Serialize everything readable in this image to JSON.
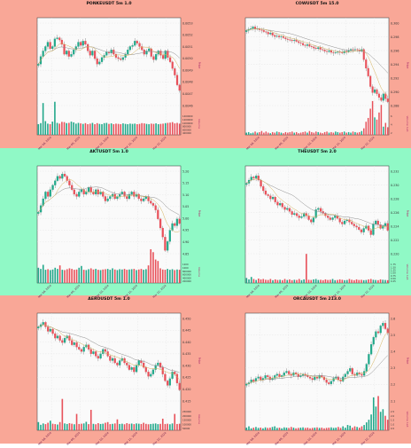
{
  "colors": {
    "band_pink": "#f9a797",
    "band_green": "#90f9c6",
    "up": "#22a88a",
    "down": "#e8515a",
    "ma_fast": "#d4b25a",
    "ma_slow": "#8c8c8c",
    "ylabel_color": "#b0356e",
    "axis_label_color": "#6b1a4a"
  },
  "chart_data": [
    {
      "type": "candlestick",
      "title": "PONKEUSDT 5m 1.0",
      "ylabel": "Price",
      "vlabel": "Volume",
      "band": 0,
      "col": 0,
      "xticks": [
        "Mar 08, 2024",
        "Mar 09, 2024",
        "Mar 10, 2024",
        "Mar 11, 2024",
        "Mar 12, 2024"
      ],
      "yticks": [
        "0.0053",
        "0.0052",
        "0.0051",
        "0.0050",
        "0.0049",
        "0.0048",
        "0.0047",
        "0.0046"
      ],
      "ylim": [
        0.00455,
        0.00535
      ],
      "vticks": [
        "1400000",
        "1200000",
        "1000000",
        "800000",
        "600000",
        "400000"
      ],
      "vlim": [
        0,
        1500000
      ],
      "close": [
        0.00496,
        0.00503,
        0.00508,
        0.00512,
        0.00516,
        0.0051,
        0.00512,
        0.00519,
        0.0052,
        0.00518,
        0.00514,
        0.00505,
        0.00508,
        0.00503,
        0.00505,
        0.00509,
        0.00512,
        0.00516,
        0.00513,
        0.00517,
        0.00514,
        0.00508,
        0.00504,
        0.00508,
        0.00501,
        0.00496,
        0.00498,
        0.00502,
        0.00504,
        0.00507,
        0.00506,
        0.00509,
        0.00505,
        0.00502,
        0.00501,
        0.005,
        0.00502,
        0.00505,
        0.00509,
        0.00512,
        0.00513,
        0.00517,
        0.00515,
        0.00512,
        0.00509,
        0.00505,
        0.00508,
        0.0051,
        0.00503,
        0.005,
        0.00505,
        0.00508,
        0.00504,
        0.00501,
        0.00508,
        0.00502,
        0.00498,
        0.00492,
        0.00486,
        0.00477,
        0.00472
      ],
      "volume": [
        420000,
        460000,
        1250000,
        540000,
        440000,
        420000,
        520000,
        1300000,
        470000,
        440000,
        510000,
        500000,
        460000,
        470000,
        520000,
        490000,
        440000,
        470000,
        450000,
        430000,
        460000,
        420000,
        440000,
        470000,
        420000,
        460000,
        430000,
        420000,
        460000,
        470000,
        430000,
        450000,
        420000,
        440000,
        430000,
        420000,
        450000,
        430000,
        420000,
        440000,
        430000,
        440000,
        420000,
        430000,
        460000,
        450000,
        430000,
        420000,
        440000,
        430000,
        450000,
        420000,
        430000,
        440000,
        460000,
        470000,
        480000,
        500000,
        450000,
        470000,
        440000
      ]
    },
    {
      "type": "candlestick",
      "title": "COWUSDT 5m 15.0",
      "ylabel": "Price",
      "vlabel": "Volume 1e6",
      "band": 0,
      "col": 1,
      "xticks": [
        "Mar 08, 2024",
        "Mar 09, 2024",
        "Mar 10, 2024",
        "Mar 11, 2024",
        "Mar 12, 2024"
      ],
      "yticks": [
        "0.300",
        "0.298",
        "0.296",
        "0.294",
        "0.292",
        "0.290",
        "0.288"
      ],
      "ylim": [
        0.2868,
        0.3012
      ],
      "vticks": [
        "6",
        "4",
        "2"
      ],
      "vlim": [
        0,
        7
      ],
      "close": [
        0.2997,
        0.2999,
        0.3,
        0.3003,
        0.2999,
        0.3,
        0.2998,
        0.2997,
        0.2995,
        0.2994,
        0.2991,
        0.2993,
        0.2989,
        0.2987,
        0.2988,
        0.2986,
        0.2987,
        0.2985,
        0.2983,
        0.2982,
        0.2981,
        0.298,
        0.2981,
        0.2979,
        0.2977,
        0.2976,
        0.2973,
        0.2972,
        0.2974,
        0.2971,
        0.297,
        0.2968,
        0.2967,
        0.2969,
        0.2966,
        0.2965,
        0.2963,
        0.2962,
        0.2964,
        0.2961,
        0.296,
        0.2961,
        0.2962,
        0.2961,
        0.296,
        0.2963,
        0.2962,
        0.2964,
        0.2966,
        0.2965,
        0.2966,
        0.2965,
        0.2963,
        0.2966,
        0.2949,
        0.2935,
        0.2922,
        0.2905,
        0.2895,
        0.29,
        0.2893,
        0.2887,
        0.2882,
        0.2893,
        0.2885,
        0.288
      ],
      "volume": [
        0.4,
        0.5,
        0.3,
        0.4,
        0.6,
        0.4,
        0.5,
        0.7,
        0.4,
        0.6,
        0.4,
        0.3,
        0.5,
        0.4,
        0.6,
        0.5,
        0.4,
        0.3,
        0.5,
        0.4,
        0.5,
        0.6,
        0.4,
        0.5,
        0.3,
        0.4,
        0.5,
        0.6,
        0.4,
        0.7,
        0.5,
        0.4,
        0.6,
        0.5,
        0.4,
        0.3,
        0.5,
        0.6,
        0.4,
        0.5,
        0.4,
        0.6,
        0.5,
        0.4,
        0.5,
        0.6,
        0.4,
        0.5,
        0.4,
        0.6,
        0.5,
        0.4,
        0.5,
        0.7,
        1.2,
        2.4,
        3.1,
        4.8,
        6.2,
        3.2,
        2.8,
        4.1,
        5.5,
        1.5,
        2.2,
        1.4
      ]
    },
    {
      "type": "candlestick",
      "title": "AKTUSDT 5m 1.0",
      "ylabel": "Price",
      "vlabel": "Volume",
      "band": 1,
      "col": 0,
      "xticks": [
        "Mar 08, 2024",
        "Mar 09, 2024",
        "Mar 10, 2024",
        "Mar 11, 2024",
        "Mar 12, 2024"
      ],
      "yticks": [
        "5.20",
        "5.15",
        "5.10",
        "5.05",
        "5.00",
        "4.95",
        "4.90",
        "4.85"
      ],
      "ylim": [
        4.83,
        5.22
      ],
      "vticks": [
        "1200",
        "1000",
        "800000",
        "600000",
        "400000",
        "200000"
      ],
      "vlim": [
        0,
        1300000
      ],
      "close": [
        5.03,
        5.06,
        5.09,
        5.12,
        5.1,
        5.13,
        5.15,
        5.17,
        5.19,
        5.18,
        5.2,
        5.19,
        5.17,
        5.15,
        5.13,
        5.11,
        5.1,
        5.12,
        5.13,
        5.11,
        5.12,
        5.14,
        5.12,
        5.11,
        5.13,
        5.11,
        5.12,
        5.1,
        5.08,
        5.09,
        5.1,
        5.11,
        5.09,
        5.1,
        5.11,
        5.12,
        5.1,
        5.09,
        5.11,
        5.12,
        5.1,
        5.11,
        5.09,
        5.08,
        5.09,
        5.1,
        5.08,
        5.07,
        5.06,
        5.04,
        5.0,
        4.96,
        4.92,
        4.86,
        4.9,
        4.95,
        4.98,
        4.97,
        5.0,
        4.98
      ],
      "volume": [
        520000,
        480000,
        620000,
        450000,
        470000,
        440000,
        460000,
        520000,
        480000,
        600000,
        450000,
        440000,
        470000,
        500000,
        480000,
        450000,
        460000,
        520000,
        580000,
        450000,
        440000,
        470000,
        500000,
        460000,
        480000,
        450000,
        440000,
        460000,
        470000,
        480000,
        450000,
        500000,
        460000,
        440000,
        470000,
        460000,
        480000,
        450000,
        460000,
        470000,
        480000,
        440000,
        460000,
        480000,
        450000,
        470000,
        600000,
        1150000,
        1050000,
        800000,
        750000,
        500000,
        460000,
        450000,
        480000,
        450000,
        470000,
        440000,
        460000,
        450000
      ]
    },
    {
      "type": "candlestick",
      "title": "THEUSDT 5m 2.0",
      "ylabel": "Price",
      "vlabel": "Volume 1e6",
      "band": 1,
      "col": 1,
      "xticks": [
        "Mar 08, 2024",
        "Mar 09, 2024",
        "Mar 10, 2024",
        "Mar 11, 2024",
        "Mar 12, 2024"
      ],
      "yticks": [
        "0.232",
        "0.230",
        "0.228",
        "0.226",
        "0.224",
        "0.222",
        "0.220"
      ],
      "ylim": [
        0.2192,
        0.2332
      ],
      "vticks": [
        "1.75",
        "1.50",
        "1.25",
        "1.00",
        "0.75",
        "0.50",
        "0.25"
      ],
      "vlim": [
        0,
        1.9
      ],
      "close": [
        0.231,
        0.2315,
        0.232,
        0.2318,
        0.2322,
        0.2315,
        0.2305,
        0.2298,
        0.2292,
        0.229,
        0.2285,
        0.2288,
        0.228,
        0.2275,
        0.2278,
        0.2272,
        0.2268,
        0.227,
        0.2265,
        0.226,
        0.2262,
        0.2258,
        0.2255,
        0.2257,
        0.2262,
        0.2258,
        0.2252,
        0.2248,
        0.2255,
        0.2268,
        0.227,
        0.2265,
        0.2262,
        0.2258,
        0.2255,
        0.2252,
        0.2255,
        0.2258,
        0.2254,
        0.2248,
        0.2245,
        0.225,
        0.2252,
        0.2248,
        0.2245,
        0.2242,
        0.224,
        0.2236,
        0.2232,
        0.2238,
        0.2242,
        0.2235,
        0.2228,
        0.2245,
        0.225,
        0.2244,
        0.2238,
        0.2242,
        0.2246,
        0.2235
      ],
      "volume": [
        0.25,
        0.18,
        0.3,
        0.2,
        0.15,
        0.22,
        0.18,
        0.2,
        0.16,
        0.15,
        0.2,
        0.14,
        0.18,
        0.15,
        0.16,
        0.14,
        0.2,
        0.15,
        0.18,
        0.14,
        0.16,
        0.15,
        0.2,
        0.14,
        0.18,
        1.45,
        0.16,
        0.15,
        0.18,
        0.2,
        0.15,
        0.16,
        0.14,
        0.18,
        0.15,
        0.16,
        0.2,
        0.14,
        0.15,
        0.18,
        0.16,
        0.14,
        0.15,
        0.2,
        0.16,
        0.14,
        0.18,
        0.15,
        0.16,
        0.14,
        0.15,
        0.18,
        0.2,
        0.16,
        0.15,
        0.14,
        0.18,
        0.16,
        0.15,
        0.14
      ]
    },
    {
      "type": "candlestick",
      "title": "AEROUSDT 5m 1.0",
      "ylabel": "Price",
      "vlabel": "Volume",
      "band": 2,
      "col": 0,
      "xticks": [
        "Mar 08, 2024",
        "Mar 09, 2024",
        "Mar 10, 2024",
        "Mar 11, 2024",
        "Mar 12, 2024"
      ],
      "yticks": [
        "0.450",
        "0.445",
        "0.440",
        "0.435",
        "0.430",
        "0.425",
        "0.420",
        "0.415"
      ],
      "ylim": [
        0.4125,
        0.4515
      ],
      "vticks": [
        "250000",
        "200000",
        "150000",
        "100000",
        "50000"
      ],
      "vlim": [
        0,
        280000
      ],
      "close": [
        0.447,
        0.448,
        0.449,
        0.447,
        0.445,
        0.446,
        0.444,
        0.442,
        0.443,
        0.441,
        0.44,
        0.442,
        0.443,
        0.441,
        0.439,
        0.44,
        0.438,
        0.437,
        0.436,
        0.438,
        0.439,
        0.437,
        0.435,
        0.436,
        0.434,
        0.433,
        0.435,
        0.437,
        0.436,
        0.434,
        0.432,
        0.433,
        0.431,
        0.43,
        0.432,
        0.433,
        0.431,
        0.43,
        0.428,
        0.429,
        0.427,
        0.43,
        0.432,
        0.431,
        0.429,
        0.427,
        0.425,
        0.426,
        0.428,
        0.43,
        0.431,
        0.429,
        0.426,
        0.423,
        0.421,
        0.424,
        0.427,
        0.426,
        0.422,
        0.419
      ],
      "volume": [
        60000,
        40000,
        50000,
        45000,
        55000,
        70000,
        48000,
        45000,
        42000,
        60000,
        230000,
        50000,
        46000,
        52000,
        48000,
        44000,
        120000,
        46000,
        48000,
        50000,
        62000,
        45000,
        150000,
        47000,
        44000,
        52000,
        46000,
        48000,
        55000,
        60000,
        45000,
        47000,
        50000,
        80000,
        46000,
        48000,
        44000,
        52000,
        47000,
        49000,
        45000,
        50000,
        48000,
        46000,
        55000,
        47000,
        44000,
        46000,
        48000,
        50000,
        45000,
        47000,
        85000,
        46000,
        48000,
        44000,
        50000,
        120000,
        46000,
        48000
      ]
    },
    {
      "type": "candlestick",
      "title": "ORCAUSDT 5m 213.0",
      "ylabel": "Price",
      "vlabel": "Volume 1e6",
      "band": 2,
      "col": 1,
      "xticks": [
        "Mar 08, 2024",
        "Mar 09, 2024",
        "Mar 10, 2024",
        "Mar 11, 2024",
        "Mar 12, 2024"
      ],
      "yticks": [
        "2.6",
        "2.5",
        "2.4",
        "2.3",
        "2.2",
        "2.1"
      ],
      "ylim": [
        2.045,
        2.665
      ],
      "vticks": [
        "2.5",
        "2.0",
        "1.5",
        "1.0",
        "0.5"
      ],
      "vlim": [
        0,
        2.9
      ],
      "close": [
        2.19,
        2.2,
        2.22,
        2.21,
        2.23,
        2.24,
        2.22,
        2.23,
        2.25,
        2.24,
        2.22,
        2.23,
        2.25,
        2.26,
        2.24,
        2.25,
        2.27,
        2.28,
        2.26,
        2.25,
        2.27,
        2.26,
        2.24,
        2.25,
        2.26,
        2.25,
        2.24,
        2.23,
        2.22,
        2.24,
        2.23,
        2.25,
        2.24,
        2.22,
        2.2,
        2.19,
        2.21,
        2.23,
        2.24,
        2.22,
        2.21,
        2.24,
        2.26,
        2.28,
        2.3,
        2.26,
        2.25,
        2.27,
        2.26,
        2.25,
        2.28,
        2.33,
        2.4,
        2.47,
        2.52,
        2.56,
        2.55,
        2.6,
        2.62,
        2.58,
        2.55
      ],
      "volume": [
        0.2,
        0.3,
        0.15,
        0.2,
        0.25,
        0.18,
        0.2,
        0.15,
        0.22,
        0.18,
        0.2,
        0.25,
        0.3,
        0.18,
        0.2,
        0.15,
        0.22,
        0.2,
        0.18,
        0.25,
        0.2,
        0.15,
        0.18,
        0.2,
        0.22,
        0.18,
        0.2,
        0.15,
        0.18,
        0.2,
        0.22,
        0.18,
        0.2,
        0.15,
        0.18,
        0.2,
        0.22,
        0.18,
        0.2,
        0.25,
        0.18,
        0.3,
        0.2,
        0.4,
        0.35,
        0.2,
        0.3,
        0.25,
        0.2,
        0.3,
        0.4,
        0.6,
        0.8,
        1.2,
        2.5,
        1.8,
        2.6,
        1.4,
        1.6,
        1.1,
        0.8
      ]
    }
  ]
}
